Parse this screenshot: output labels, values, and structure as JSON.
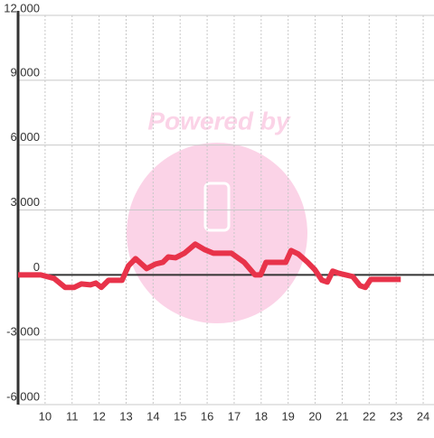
{
  "chart_data": {
    "type": "line",
    "watermark": "Powered by",
    "x": [
      9.0,
      9.84,
      10.34,
      10.74,
      11.08,
      11.34,
      11.68,
      11.88,
      12.08,
      12.35,
      12.85,
      13.09,
      13.35,
      13.76,
      14.09,
      14.36,
      14.56,
      14.83,
      15.16,
      15.56,
      15.9,
      16.23,
      16.9,
      17.37,
      17.77,
      17.98,
      18.18,
      18.91,
      19.11,
      19.38,
      19.72,
      19.98,
      20.25,
      20.45,
      20.65,
      20.86,
      21.12,
      21.39,
      21.66,
      21.86,
      22.06,
      22.4,
      23.17
    ],
    "series": [
      {
        "color": "#e8334a",
        "values": [
          0,
          0,
          -170,
          -580,
          -580,
          -420,
          -460,
          -380,
          -580,
          -250,
          -250,
          420,
          750,
          290,
          500,
          580,
          830,
          790,
          1000,
          1420,
          1170,
          1000,
          1000,
          580,
          0,
          0,
          580,
          580,
          1125,
          960,
          580,
          250,
          -250,
          -330,
          170,
          80,
          0,
          -80,
          -500,
          -580,
          -210,
          -210,
          -210
        ]
      }
    ],
    "xlim": [
      9,
      24.4
    ],
    "xticks": [
      10,
      11,
      12,
      13,
      14,
      15,
      16,
      17,
      18,
      19,
      20,
      21,
      22,
      23,
      24
    ],
    "ylim": [
      -6000,
      12000
    ],
    "yticks": [
      {
        "value": -6000,
        "label": "-6,000"
      },
      {
        "value": -3000,
        "label": "-3,000"
      },
      0,
      {
        "value": 3000,
        "label": "3,000"
      },
      {
        "value": 6000,
        "label": "6,000"
      },
      {
        "value": 9000,
        "label": "9,000"
      },
      {
        "value": 12000,
        "label": "12,000"
      }
    ],
    "grid": true
  }
}
